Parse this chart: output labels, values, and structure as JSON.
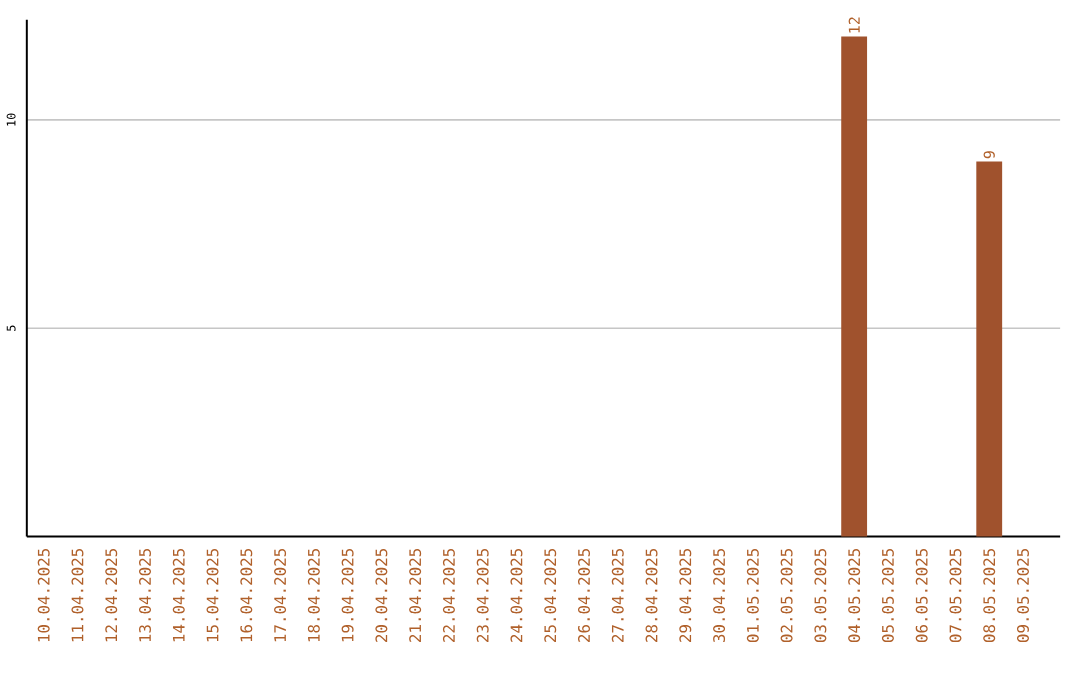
{
  "chart_data": {
    "type": "bar",
    "categories": [
      "10.04.2025",
      "11.04.2025",
      "12.04.2025",
      "13.04.2025",
      "14.04.2025",
      "15.04.2025",
      "16.04.2025",
      "17.04.2025",
      "18.04.2025",
      "19.04.2025",
      "20.04.2025",
      "21.04.2025",
      "22.04.2025",
      "23.04.2025",
      "24.04.2025",
      "25.04.2025",
      "26.04.2025",
      "27.04.2025",
      "28.04.2025",
      "29.04.2025",
      "30.04.2025",
      "01.05.2025",
      "02.05.2025",
      "03.05.2025",
      "04.05.2025",
      "05.05.2025",
      "06.05.2025",
      "07.05.2025",
      "08.05.2025",
      "09.05.2025"
    ],
    "values": [
      0,
      0,
      0,
      0,
      0,
      0,
      0,
      0,
      0,
      0,
      0,
      0,
      0,
      0,
      0,
      0,
      0,
      0,
      0,
      0,
      0,
      0,
      0,
      0,
      12,
      0,
      0,
      0,
      9,
      0
    ],
    "value_labels": [
      null,
      null,
      null,
      null,
      null,
      null,
      null,
      null,
      null,
      null,
      null,
      null,
      null,
      null,
      null,
      null,
      null,
      null,
      null,
      null,
      null,
      null,
      null,
      null,
      "12",
      null,
      null,
      null,
      "9",
      null
    ],
    "color": "#a0522d",
    "ylim": [
      0,
      12.4
    ],
    "yticks": [
      5,
      10
    ],
    "grid": "y"
  }
}
